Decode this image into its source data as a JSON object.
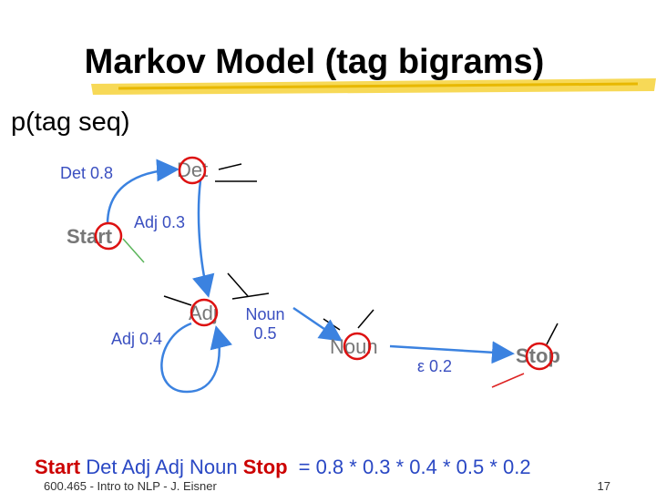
{
  "title": "Markov Model (tag bigrams)",
  "subtitle": "p(tag seq)",
  "nodes": [
    {
      "label": "Start"
    },
    {
      "label": "Det"
    },
    {
      "label": "Adj"
    },
    {
      "label": "Noun"
    },
    {
      "label": "Stop"
    }
  ],
  "edges": [
    {
      "tag": "Det",
      "prob": "0.8"
    },
    {
      "tag": "Adj",
      "prob": "0.3"
    },
    {
      "tag": "Adj",
      "prob": "0.4"
    },
    {
      "tag": "Noun",
      "prob": "0.5"
    },
    {
      "tag": "ε",
      "prob": "0.2"
    }
  ],
  "equation": {
    "start": "Start",
    "middle": "Det Adj Adj Noun",
    "stop": "Stop",
    "product": "= 0.8 * 0.3 * 0.4 * 0.5 * 0.2"
  },
  "footer": {
    "left": "600.465 - Intro to NLP - J. Eisner",
    "page": "17"
  }
}
